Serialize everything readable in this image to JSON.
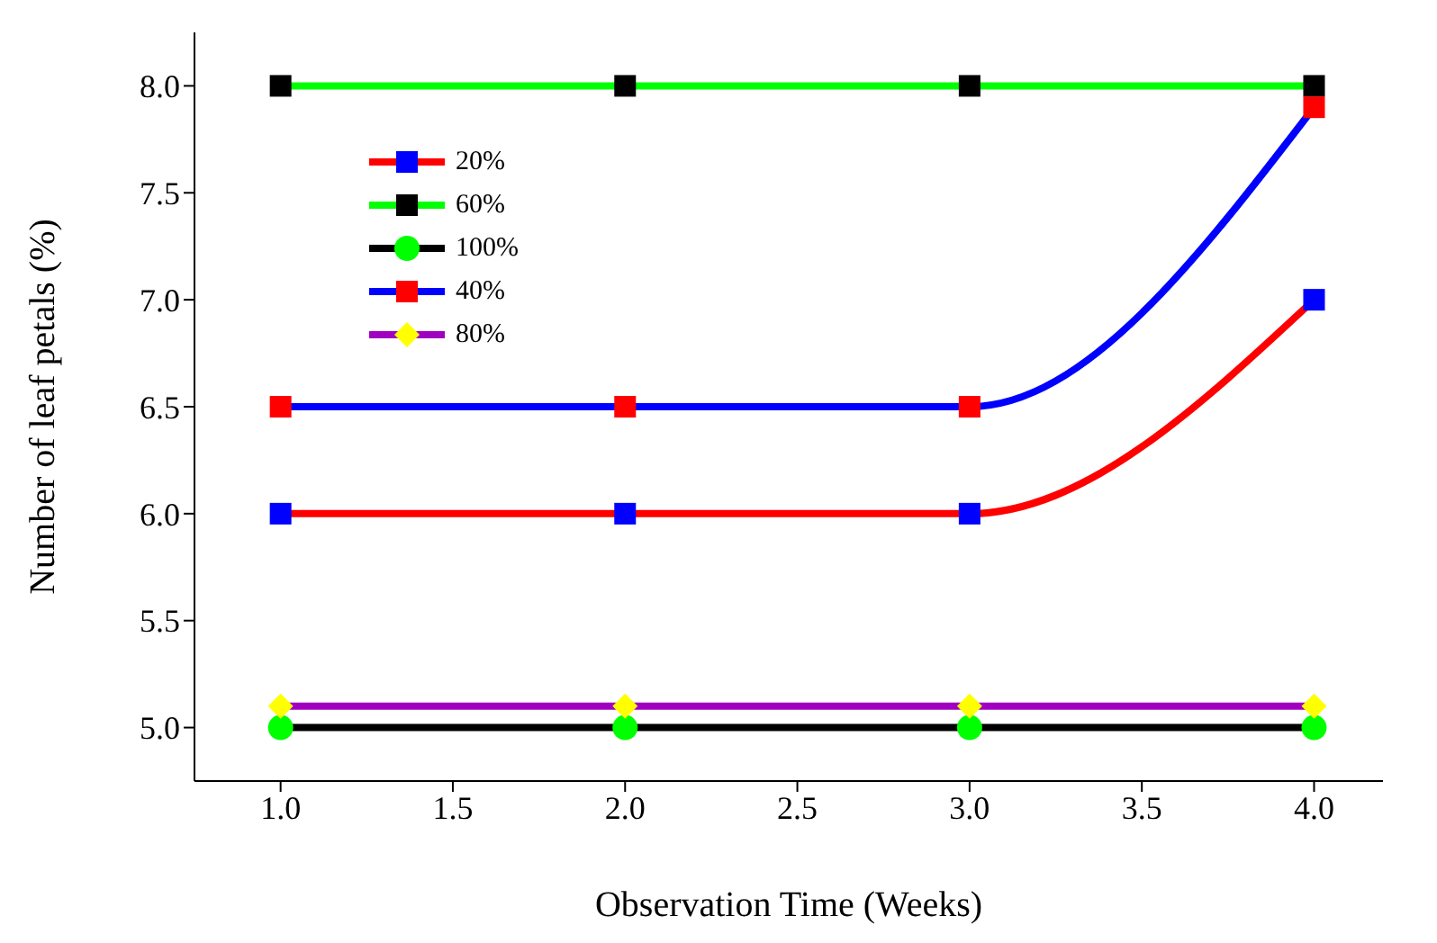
{
  "chart_data": {
    "type": "line",
    "xlabel": "Observation Time (Weeks)",
    "ylabel": "Number of leaf petals (%)",
    "x": [
      1,
      2,
      3,
      4
    ],
    "xlim": [
      0.75,
      4.2
    ],
    "xticks": [
      {
        "value": 1,
        "label": "1.0"
      },
      {
        "value": 1.5,
        "label": "1.5"
      },
      {
        "value": 2,
        "label": "2.0"
      },
      {
        "value": 2.5,
        "label": "2.5"
      },
      {
        "value": 3,
        "label": "3.0"
      },
      {
        "value": 3.5,
        "label": "3.5"
      },
      {
        "value": 4,
        "label": "4.0"
      }
    ],
    "ylim": [
      4.75,
      8.25
    ],
    "yticks": [
      {
        "value": 5,
        "label": "5.0"
      },
      {
        "value": 5.5,
        "label": "5.5"
      },
      {
        "value": 6,
        "label": "6.0"
      },
      {
        "value": 6.5,
        "label": "6.5"
      },
      {
        "value": 7,
        "label": "7.0"
      },
      {
        "value": 7.5,
        "label": "7.5"
      },
      {
        "value": 8,
        "label": "8.0"
      }
    ],
    "grid": false,
    "legend": "top left",
    "line_style": "solid",
    "series": [
      {
        "name": "20%",
        "color": "#ff0000",
        "colors": [
          "#0000ff",
          "#0000ff",
          "#0000ff",
          "#0000ff"
        ],
        "marker": "square",
        "values": [
          6,
          6,
          6,
          7
        ]
      },
      {
        "name": "60%",
        "color": "#00ff00",
        "colors": [
          "#000000",
          "#000000",
          "#000000",
          "#000000"
        ],
        "marker": "square",
        "values": [
          8,
          8,
          8,
          8
        ]
      },
      {
        "name": "100%",
        "color": "#000000",
        "colors": [
          "#00ff00",
          "#00ff00",
          "#00ff00",
          "#00ff00"
        ],
        "marker": "circle",
        "values": [
          5,
          5,
          5,
          5
        ]
      },
      {
        "name": "40%",
        "color": "#0000ff",
        "colors": [
          "#ff0000",
          "#ff0000",
          "#ff0000",
          "#ff0000"
        ],
        "marker": "square",
        "values": [
          6.5,
          6.5,
          6.5,
          7.9
        ]
      },
      {
        "name": "80%",
        "color": "#a000c0",
        "colors": [
          "#ffff00",
          "#ffff00",
          "#ffff00",
          "#ffff00"
        ],
        "marker": "diamond",
        "values": [
          5.1,
          5.1,
          5.1,
          5.1
        ]
      }
    ]
  }
}
